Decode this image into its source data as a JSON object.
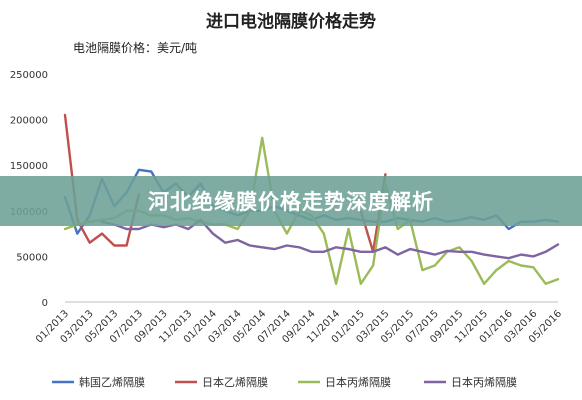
{
  "chart_data": {
    "type": "line",
    "title": "进口电池隔膜价格走势",
    "subtitle": "电池隔膜价格：美元/吨",
    "x": [
      "01/2013",
      "02/2013",
      "03/2013",
      "04/2013",
      "05/2013",
      "06/2013",
      "07/2013",
      "08/2013",
      "09/2013",
      "10/2013",
      "11/2013",
      "12/2013",
      "01/2014",
      "02/2014",
      "03/2014",
      "04/2014",
      "05/2014",
      "06/2014",
      "07/2014",
      "08/2014",
      "09/2014",
      "10/2014",
      "11/2014",
      "12/2014",
      "01/2015",
      "02/2015",
      "03/2015",
      "04/2015",
      "05/2015",
      "06/2015",
      "07/2015",
      "08/2015",
      "09/2015",
      "10/2015",
      "11/2015",
      "12/2015",
      "01/2016",
      "02/2016",
      "03/2016",
      "04/2016",
      "05/2016"
    ],
    "x_tick_labels": [
      "01/2013",
      "03/2013",
      "05/2013",
      "07/2013",
      "09/2013",
      "11/2013",
      "01/2014",
      "03/2014",
      "05/2014",
      "07/2014",
      "09/2014",
      "11/2014",
      "01/2015",
      "03/2015",
      "05/2015",
      "07/2015",
      "09/2015",
      "11/2015",
      "01/2016",
      "03/2016",
      "05/2016"
    ],
    "ylim": [
      0,
      250000
    ],
    "y_ticks": [
      "0",
      "50000",
      "100000",
      "150000",
      "200000",
      "250000"
    ],
    "grid": false,
    "legend_position": "bottom",
    "series": [
      {
        "name": "韩国乙烯隔膜",
        "color": "#4472c4",
        "values": [
          115000,
          75000,
          95000,
          135000,
          105000,
          120000,
          145000,
          143000,
          120000,
          130000,
          115000,
          130000,
          105000,
          100000,
          95000,
          100000,
          100000,
          105000,
          100000,
          95000,
          90000,
          95000,
          90000,
          92000,
          90000,
          88000,
          88000,
          92000,
          90000,
          88000,
          92000,
          88000,
          90000,
          93000,
          90000,
          95000,
          80000,
          88000,
          88000,
          90000,
          88000
        ]
      },
      {
        "name": "日本乙烯隔膜",
        "color": "#c0504d",
        "values": [
          205000,
          90000,
          65000,
          75000,
          62000,
          62000,
          118000,
          null,
          null,
          null,
          null,
          null,
          null,
          null,
          null,
          null,
          null,
          null,
          null,
          null,
          null,
          null,
          null,
          null,
          100000,
          55000,
          140000,
          null,
          null,
          null,
          null,
          null,
          null,
          null,
          null,
          null,
          null,
          null,
          null,
          null,
          null
        ]
      },
      {
        "name": "日本丙烯隔膜",
        "color": "#9bbb59",
        "values": [
          80000,
          85000,
          88000,
          90000,
          92000,
          100000,
          100000,
          95000,
          95000,
          90000,
          92000,
          88000,
          85000,
          85000,
          80000,
          100000,
          180000,
          100000,
          75000,
          100000,
          95000,
          75000,
          20000,
          80000,
          20000,
          40000,
          130000,
          80000,
          90000,
          35000,
          40000,
          55000,
          60000,
          45000,
          20000,
          35000,
          45000,
          40000,
          38000,
          20000,
          25000
        ]
      },
      {
        "name": "日本丙烯隔膜",
        "color": "#8064a2",
        "values": [
          null,
          null,
          null,
          88000,
          85000,
          80000,
          80000,
          85000,
          82000,
          85000,
          80000,
          90000,
          75000,
          65000,
          68000,
          62000,
          60000,
          58000,
          62000,
          60000,
          55000,
          55000,
          60000,
          58000,
          55000,
          55000,
          60000,
          52000,
          58000,
          55000,
          52000,
          56000,
          55000,
          55000,
          52000,
          50000,
          48000,
          52000,
          50000,
          55000,
          63000
        ]
      }
    ]
  },
  "banner": {
    "text": "河北绝缘膜价格走势深度解析"
  }
}
